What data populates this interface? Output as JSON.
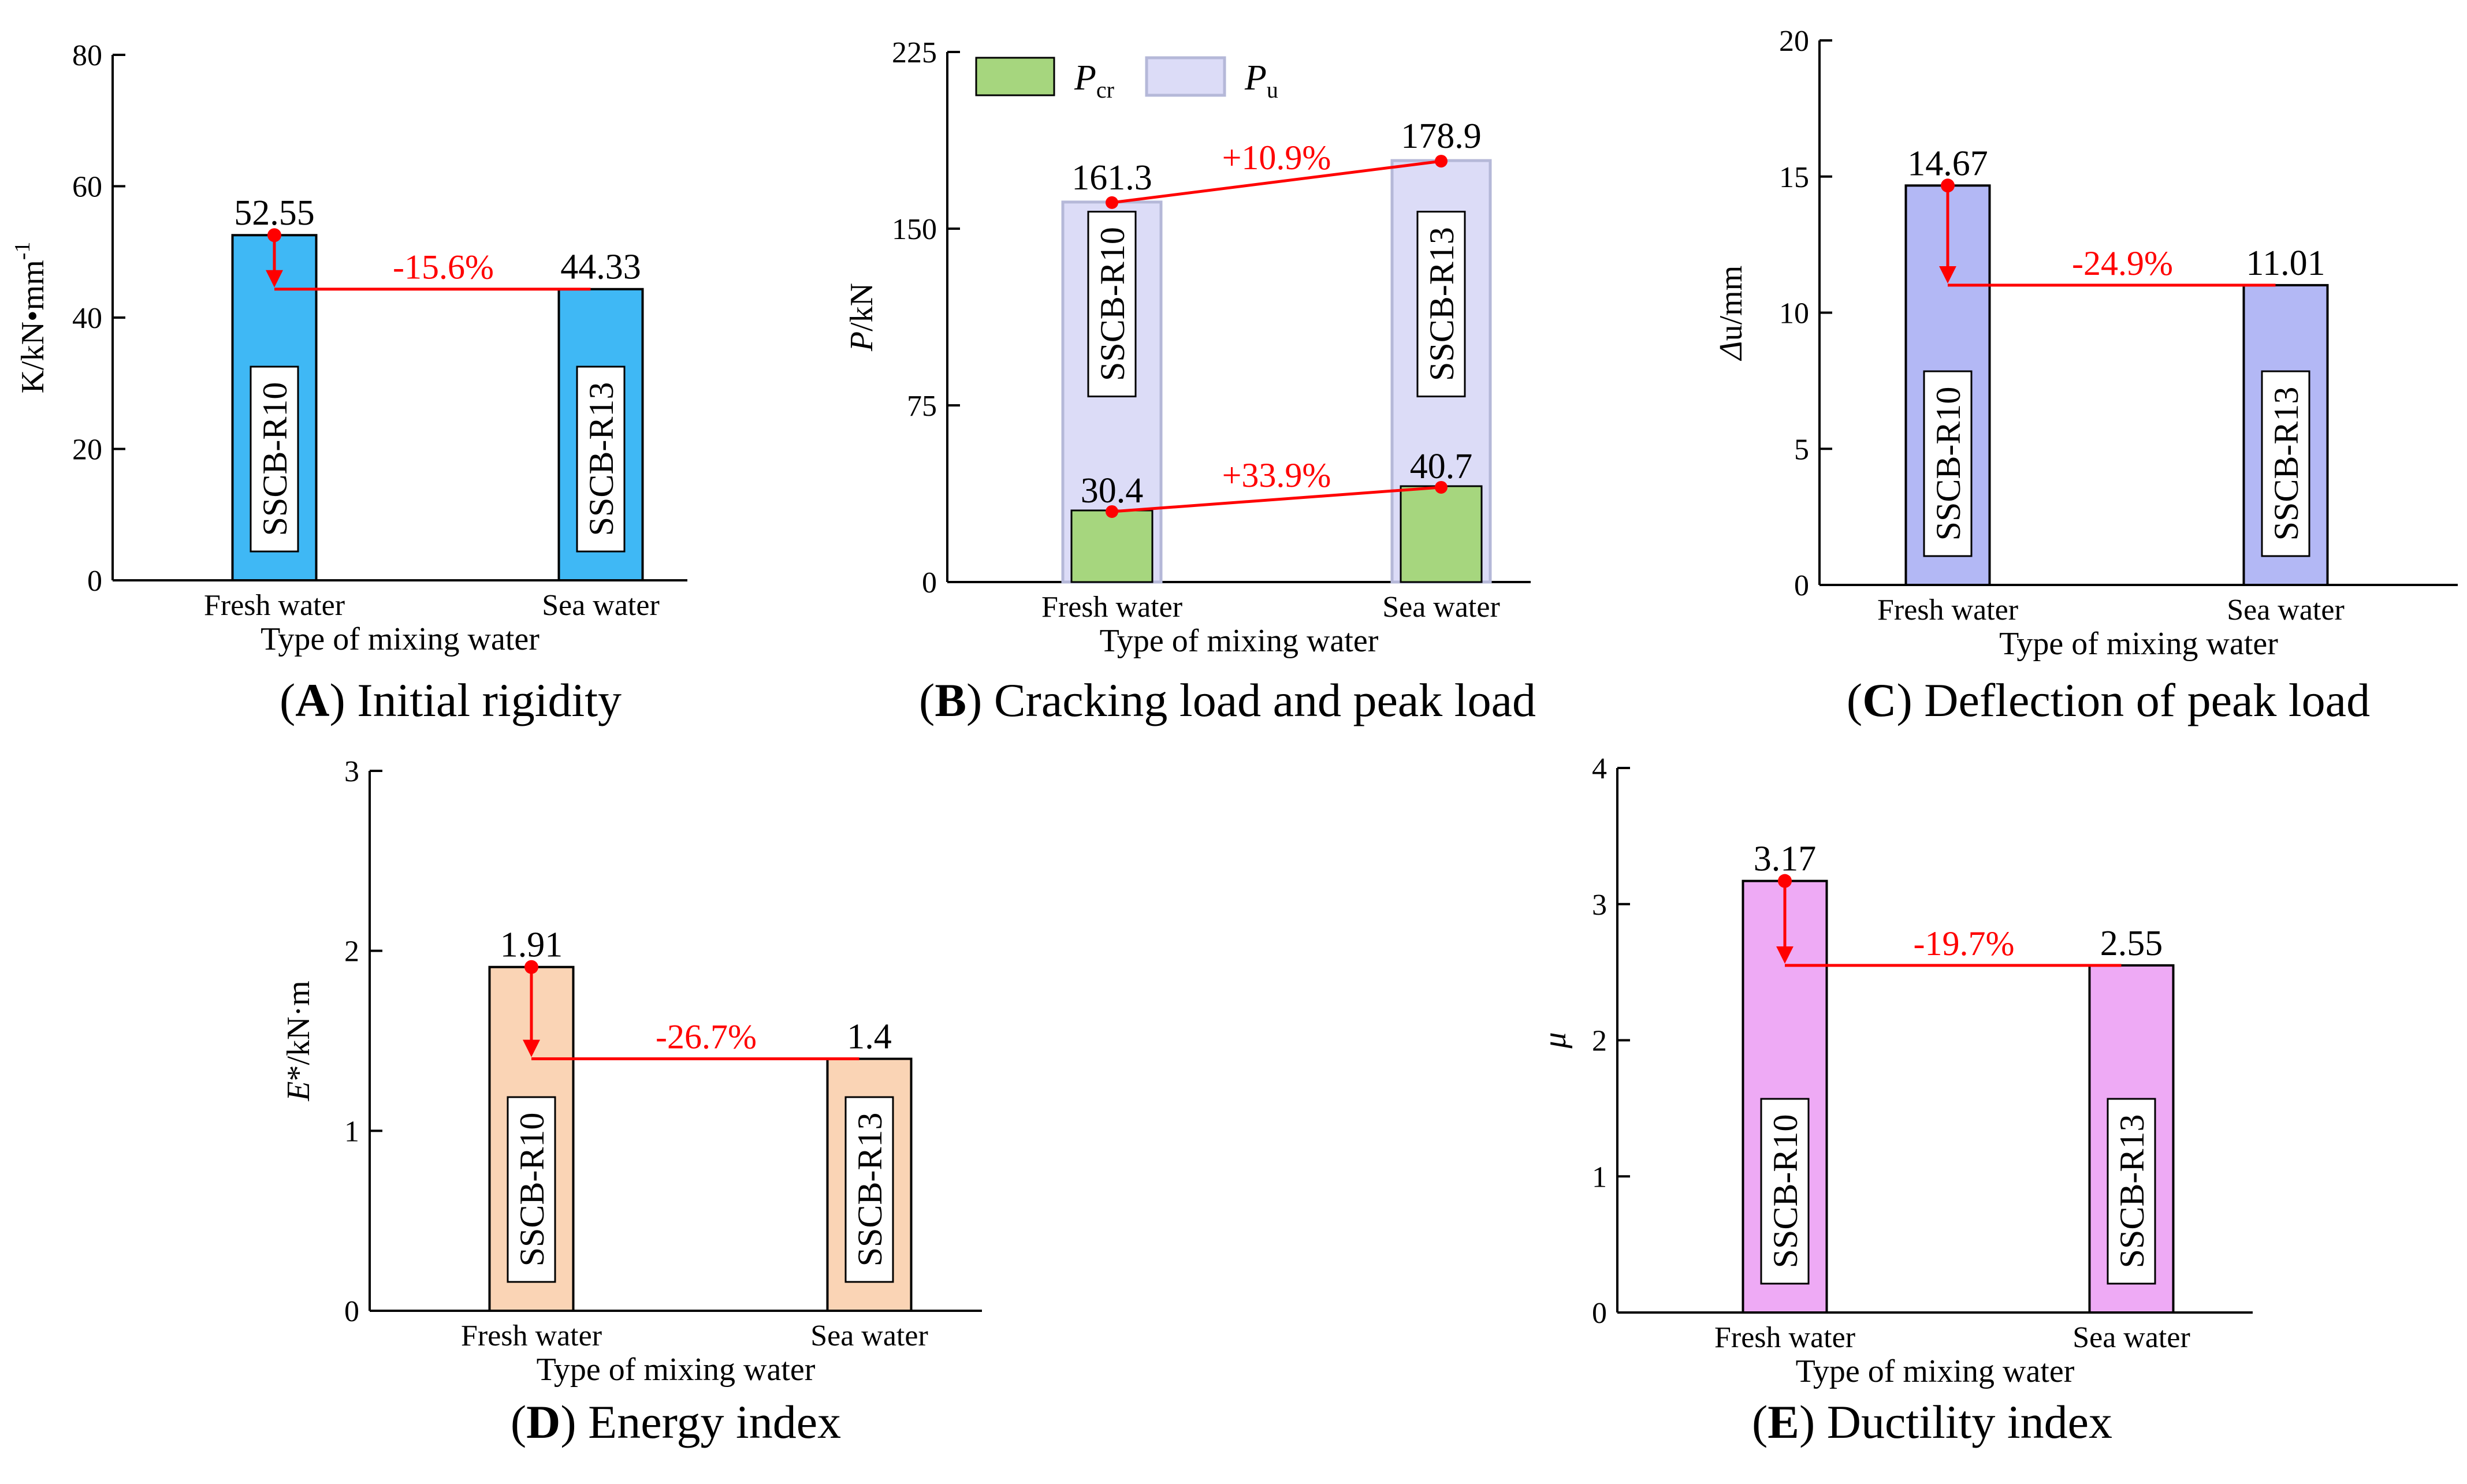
{
  "chart_data": [
    {
      "id": "A",
      "type": "bar",
      "caption": {
        "letter": "A",
        "text": "Initial rigidity"
      },
      "xlabel": "Type of mixing water",
      "ylabel": "K/kN•mm-1",
      "ylabel_main": "K/kN•mm",
      "ylabel_sup": "-1",
      "ylim": [
        0,
        80
      ],
      "yticks": [
        0,
        20,
        40,
        60,
        80
      ],
      "categories": [
        "Fresh water",
        "Sea water"
      ],
      "series": [
        {
          "name": "K",
          "values": [
            52.55,
            44.33
          ],
          "value_labels": [
            "52.55",
            "44.33"
          ],
          "color": "#3fb8f5"
        }
      ],
      "specimens": [
        "SSCB-R10",
        "SSCB-R13"
      ],
      "changes": [
        {
          "label": "-15.6%",
          "style": "drop"
        }
      ]
    },
    {
      "id": "B",
      "type": "bar",
      "caption": {
        "letter": "B",
        "text": "Cracking load and peak load"
      },
      "xlabel": "Type of mixing water",
      "ylabel": "P/kN",
      "ylabel_italic": "P",
      "ylabel_rest": "/kN",
      "ylim": [
        0,
        225
      ],
      "yticks": [
        0,
        75,
        150,
        225
      ],
      "categories": [
        "Fresh water",
        "Sea water"
      ],
      "series": [
        {
          "name": "Pu",
          "legend_main": "P",
          "legend_sub": "u",
          "values": [
            161.3,
            178.9
          ],
          "value_labels": [
            "161.3",
            "178.9"
          ],
          "color": "#dcdcf7"
        },
        {
          "name": "Pcr",
          "legend_main": "P",
          "legend_sub": "cr",
          "values": [
            30.4,
            40.7
          ],
          "value_labels": [
            "30.4",
            "40.7"
          ],
          "color": "#a6d67e"
        }
      ],
      "specimens": [
        "SSCB-R10",
        "SSCB-R13"
      ],
      "changes": [
        {
          "label": "+10.9%",
          "series": "Pu"
        },
        {
          "label": "+33.9%",
          "series": "Pcr"
        }
      ],
      "legend": "top-left"
    },
    {
      "id": "C",
      "type": "bar",
      "caption": {
        "letter": "C",
        "text": "Deflection of peak load"
      },
      "xlabel": "Type of mixing water",
      "ylabel": "Δu/mm",
      "ylabel_italic": "Δ",
      "ylabel_rest": "u/mm",
      "ylim": [
        0,
        20
      ],
      "yticks": [
        0,
        5,
        10,
        15,
        20
      ],
      "categories": [
        "Fresh water",
        "Sea water"
      ],
      "series": [
        {
          "name": "Δu",
          "values": [
            14.67,
            11.01
          ],
          "value_labels": [
            "14.67",
            "11.01"
          ],
          "color": "#b3b8f5"
        }
      ],
      "specimens": [
        "SSCB-R10",
        "SSCB-R13"
      ],
      "changes": [
        {
          "label": "-24.9%",
          "style": "drop"
        }
      ]
    },
    {
      "id": "D",
      "type": "bar",
      "caption": {
        "letter": "D",
        "text": "Energy index"
      },
      "xlabel": "Type of mixing water",
      "ylabel": "E*/kN·m",
      "ylabel_italic": "E",
      "ylabel_rest": "*/kN·m",
      "ylim": [
        0,
        3
      ],
      "yticks": [
        0,
        1,
        2,
        3
      ],
      "categories": [
        "Fresh water",
        "Sea water"
      ],
      "series": [
        {
          "name": "E*",
          "values": [
            1.91,
            1.4
          ],
          "value_labels": [
            "1.91",
            "1.4"
          ],
          "color": "#fad4b5"
        }
      ],
      "specimens": [
        "SSCB-R10",
        "SSCB-R13"
      ],
      "changes": [
        {
          "label": "-26.7%",
          "style": "drop"
        }
      ]
    },
    {
      "id": "E",
      "type": "bar",
      "caption": {
        "letter": "E",
        "text": "Ductility index"
      },
      "xlabel": "Type of mixing water",
      "ylabel": "μ",
      "ylabel_italic": "μ",
      "ylabel_rest": "",
      "ylim": [
        0,
        4
      ],
      "yticks": [
        0,
        1,
        2,
        3,
        4
      ],
      "categories": [
        "Fresh water",
        "Sea water"
      ],
      "series": [
        {
          "name": "μ",
          "values": [
            3.17,
            2.55
          ],
          "value_labels": [
            "3.17",
            "2.55"
          ],
          "color": "#eeaaf5"
        }
      ],
      "specimens": [
        "SSCB-R10",
        "SSCB-R13"
      ],
      "changes": [
        {
          "label": "-19.7%",
          "style": "drop"
        }
      ]
    }
  ],
  "colors": {
    "axis": "#000000",
    "change_line": "#ff0000",
    "bar_edge": "#000000",
    "bar_edge_light": "#b5b8d8"
  }
}
